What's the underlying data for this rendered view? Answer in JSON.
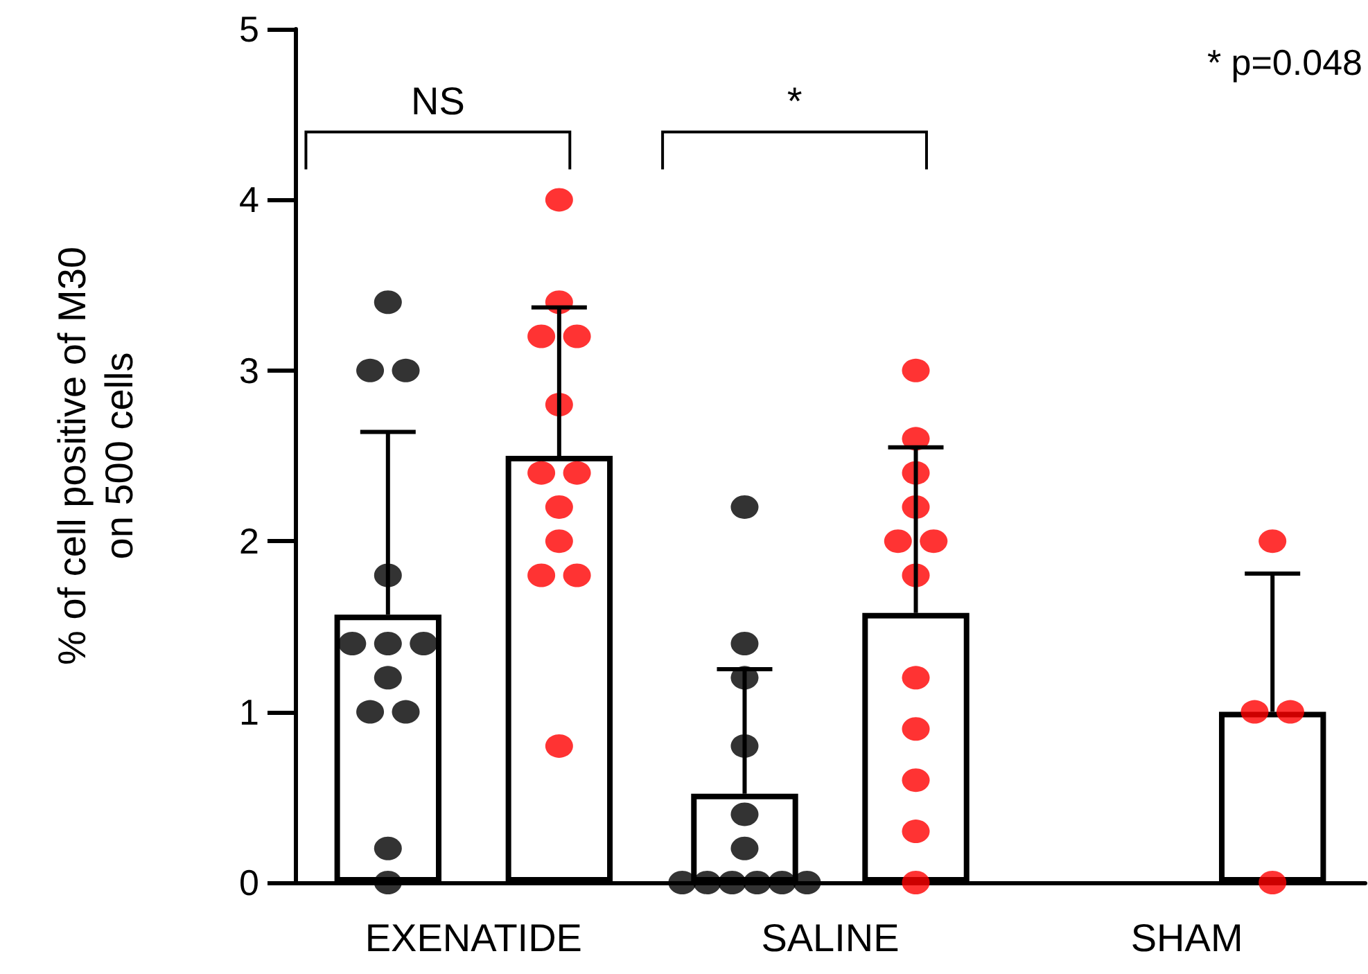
{
  "chart_data": {
    "type": "bar",
    "ylabel": "% of cell positive of M30 on 500 cells",
    "categories": [
      "EXENATIDE",
      "SALINE",
      "SHAM"
    ],
    "ylim": [
      0,
      5
    ],
    "yticks": [
      0,
      1,
      2,
      3,
      4,
      5
    ],
    "grid": false,
    "series": [
      {
        "color": "#ffffff",
        "values": [
          1.57,
          0.52,
          null
        ],
        "errors": [
          [
            1.57,
            2.64
          ],
          [
            0.52,
            1.25
          ],
          null
        ]
      },
      {
        "color": "#ffffff",
        "values": [
          2.5,
          1.58,
          1.0
        ],
        "errors": [
          [
            2.5,
            3.37
          ],
          [
            1.58,
            2.55
          ],
          [
            1.0,
            1.81
          ]
        ]
      },
      {
        "type": "scatter",
        "color": "#000000",
        "marker": "circle",
        "x": [
          "EXENATIDE",
          "EXENATIDE",
          "EXENATIDE",
          "EXENATIDE",
          "EXENATIDE",
          "EXENATIDE",
          "EXENATIDE",
          "EXENATIDE",
          "EXENATIDE",
          "EXENATIDE",
          "EXENATIDE",
          "EXENATIDE",
          "SALINE",
          "SALINE",
          "SALINE",
          "SALINE",
          "SALINE",
          "SALINE",
          "SALINE",
          "SALINE",
          "SALINE",
          "SALINE",
          "SALINE",
          "SALINE"
        ],
        "values": [
          3.4,
          3.0,
          3.0,
          1.8,
          1.4,
          1.4,
          1.4,
          1.2,
          1.0,
          1.0,
          0.2,
          0,
          2.2,
          1.4,
          1.2,
          0.8,
          0.4,
          0.2,
          0,
          0,
          0,
          0,
          0,
          0
        ]
      },
      {
        "type": "scatter",
        "color": "#ff0000",
        "marker": "circle",
        "x": [
          "EXENATIDE",
          "EXENATIDE",
          "EXENATIDE",
          "EXENATIDE",
          "EXENATIDE",
          "EXENATIDE",
          "EXENATIDE",
          "EXENATIDE",
          "EXENATIDE",
          "EXENATIDE",
          "EXENATIDE",
          "EXENATIDE",
          "SALINE",
          "SALINE",
          "SALINE",
          "SALINE",
          "SALINE",
          "SALINE",
          "SALINE",
          "SALINE",
          "SALINE",
          "SALINE",
          "SALINE",
          "SALINE",
          "SHAM",
          "SHAM",
          "SHAM",
          "SHAM"
        ],
        "values": [
          4.0,
          3.4,
          3.2,
          3.2,
          2.8,
          2.4,
          2.4,
          2.2,
          2.0,
          1.8,
          1.8,
          0.8,
          3.0,
          2.6,
          2.4,
          2.2,
          2.0,
          2.0,
          1.8,
          1.2,
          0.9,
          0.6,
          0.3,
          0,
          2.0,
          1.0,
          1.0,
          0
        ]
      }
    ],
    "annotations": [
      "NS",
      "*",
      "* p=0.048"
    ]
  }
}
